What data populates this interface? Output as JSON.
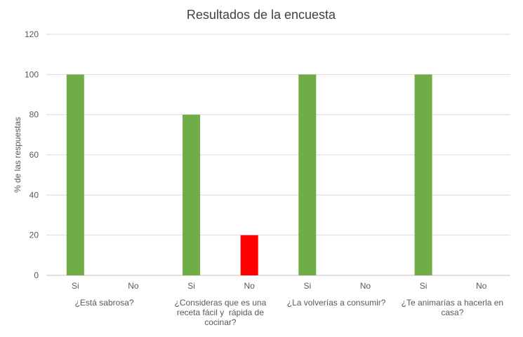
{
  "chart_data": {
    "type": "bar",
    "title": "Resultados de la encuesta",
    "xlabel": "",
    "ylabel": "% de las respuestas",
    "ylim": [
      0,
      120
    ],
    "yticks": [
      0,
      20,
      40,
      60,
      80,
      100,
      120
    ],
    "grid": true,
    "legend": "none",
    "groups": [
      {
        "label_lines": [
          "¿Está sabrosa?"
        ],
        "bars": [
          {
            "label": "Si",
            "value": 100,
            "color": "#70AD47"
          },
          {
            "label": "No",
            "value": 0,
            "color": "#70AD47"
          }
        ]
      },
      {
        "label_lines": [
          "¿Consideras que es una",
          "receta fácil y  rápida de",
          "cocinar?"
        ],
        "bars": [
          {
            "label": "Si",
            "value": 80,
            "color": "#70AD47"
          },
          {
            "label": "No",
            "value": 20,
            "color": "#FF0000"
          }
        ]
      },
      {
        "label_lines": [
          "¿La volverías a consumir?"
        ],
        "bars": [
          {
            "label": "Si",
            "value": 100,
            "color": "#70AD47"
          },
          {
            "label": "No",
            "value": 0,
            "color": "#70AD47"
          }
        ]
      },
      {
        "label_lines": [
          "¿Te animarías a hacerla en",
          "casa?"
        ],
        "bars": [
          {
            "label": "Si",
            "value": 100,
            "color": "#70AD47"
          },
          {
            "label": "No",
            "value": 0,
            "color": "#70AD47"
          }
        ]
      }
    ],
    "colors": {
      "si": "#70AD47",
      "no": "#FF0000",
      "grid": "#D9D9D9",
      "axis": "#BFBFBF",
      "text": "#595959",
      "title": "#404040"
    }
  }
}
